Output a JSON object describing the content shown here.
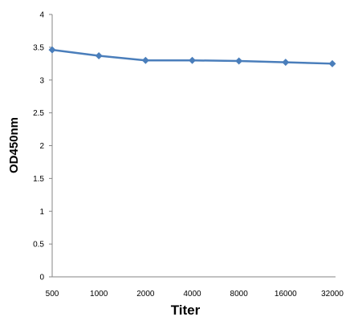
{
  "chart_data": {
    "type": "line",
    "title": "",
    "xlabel": "Titer",
    "ylabel": "OD450nm",
    "categories": [
      "500",
      "1000",
      "2000",
      "4000",
      "8000",
      "16000",
      "32000"
    ],
    "series": [
      {
        "values": [
          3.46,
          3.37,
          3.3,
          3.3,
          3.29,
          3.27,
          3.25
        ]
      }
    ],
    "ylim": [
      0,
      4
    ],
    "yticks": [
      "0",
      "0.5",
      "1",
      "1.5",
      "2",
      "2.5",
      "3",
      "3.5",
      "4"
    ],
    "grid": false,
    "legend": "none",
    "colors": {
      "line": "#4a7ebb",
      "axis": "#868686"
    }
  }
}
